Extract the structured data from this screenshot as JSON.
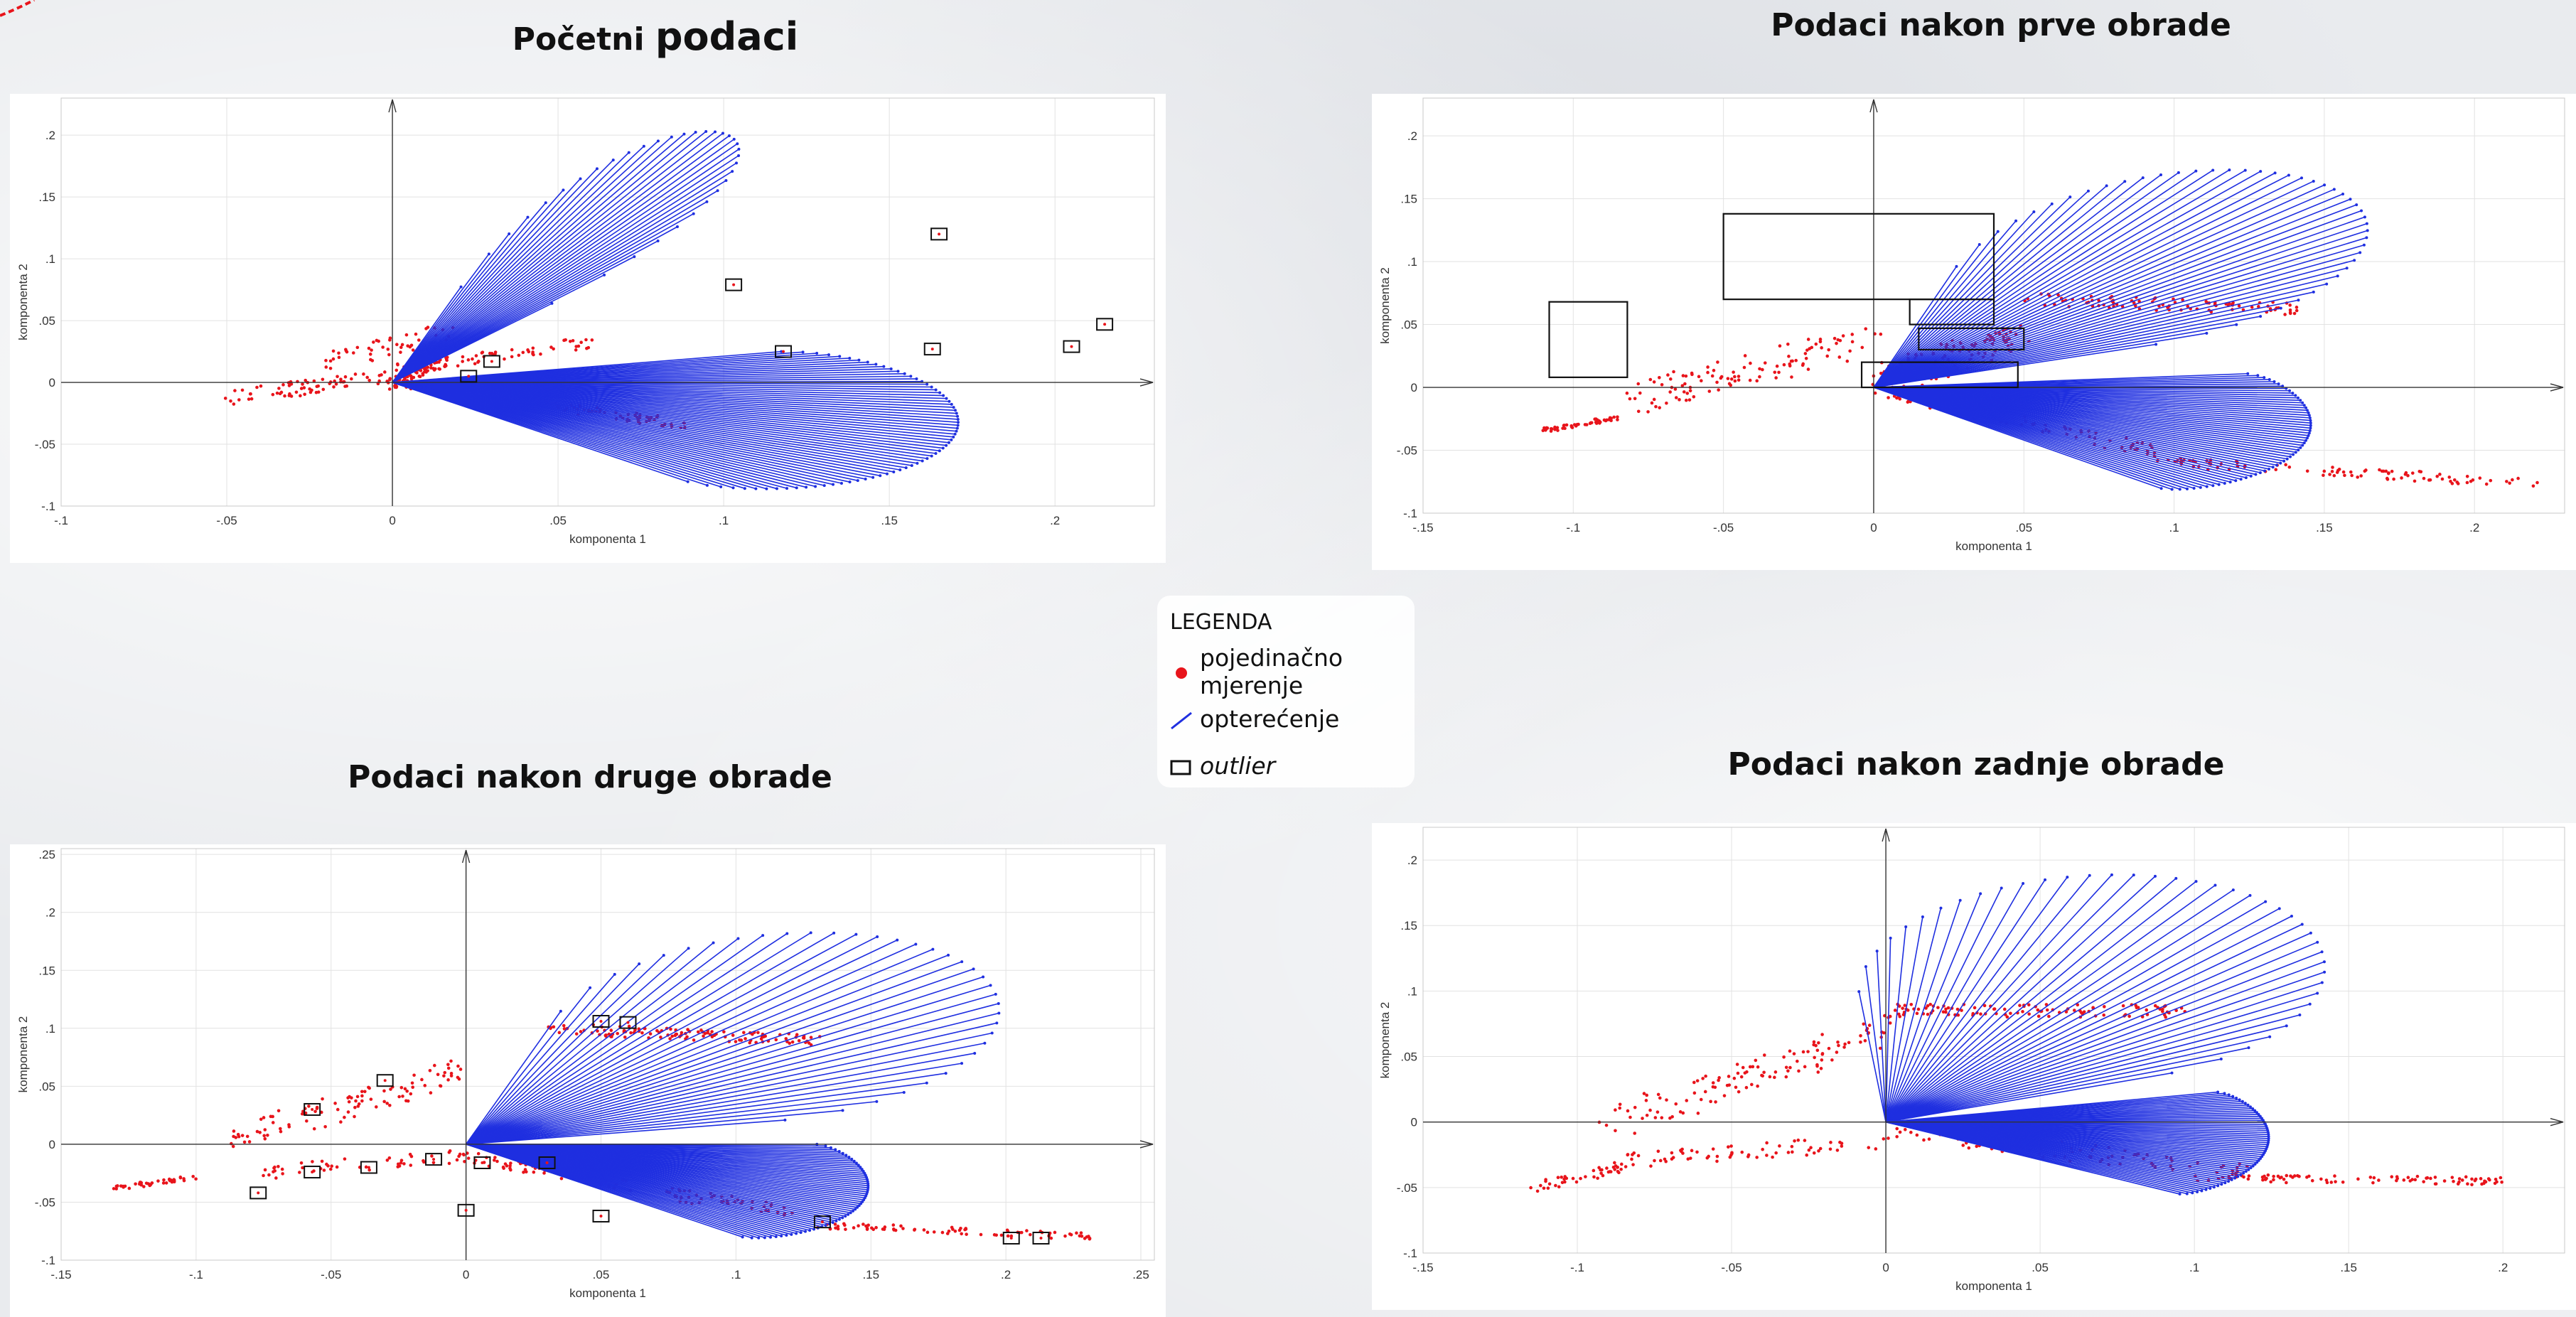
{
  "titles": {
    "p1_a": "Početni",
    "p1_b": "podaci",
    "p2": "Podaci nakon prve obrade",
    "p3": "Podaci nakon druge obrade",
    "p4": "Podaci nakon zadnje obrade"
  },
  "legend": {
    "title": "LEGENDA",
    "measurement": "pojedinačno mjerenje",
    "loading": "opterećenje",
    "outlier": "outlier",
    "colors": {
      "measurement": "#e8141b",
      "loading": "#1f2fe0",
      "outlier": "#111111"
    }
  },
  "chart_data": [
    {
      "type": "scatter",
      "title": "Početni podaci",
      "xlabel": "komponenta 1",
      "ylabel": "komponenta 2",
      "xlim": [
        -0.1,
        0.23
      ],
      "ylim": [
        -0.1,
        0.23
      ],
      "xticks": [
        -0.1,
        -0.05,
        0,
        0.05,
        0.1,
        0.15,
        0.2
      ],
      "yticks": [
        -0.1,
        -0.05,
        0,
        0.05,
        0.1,
        0.15,
        0.2
      ],
      "grid": true,
      "loadings_upper": {
        "from_angle_deg": 53,
        "to_angle_deg": 75,
        "count": 34,
        "min_r": 0.08,
        "max_r": 0.225
      },
      "loadings_lower": {
        "from_angle_deg": -42,
        "to_angle_deg": 12,
        "count": 70,
        "min_r": 0.12,
        "max_r": 0.175
      },
      "cloud_segments": [
        {
          "x0": -0.05,
          "y0": -0.012,
          "x1": 0.0,
          "y1": 0.005,
          "n": 70,
          "spread": 0.006
        },
        {
          "x0": -0.025,
          "y0": 0.012,
          "x1": 0.02,
          "y1": 0.045,
          "n": 45,
          "spread": 0.008
        },
        {
          "x0": 0.0,
          "y0": 0.0,
          "x1": 0.09,
          "y1": -0.035,
          "n": 120,
          "spread": 0.004
        },
        {
          "x0": 0.002,
          "y0": 0.01,
          "x1": 0.06,
          "y1": 0.033,
          "n": 60,
          "spread": 0.005
        },
        {
          "x0": 0.0,
          "y0": 0.0,
          "x1": 0.015,
          "y1": 0.02,
          "n": 90,
          "spread": 0.006
        }
      ],
      "outliers": [
        {
          "x": 0.103,
          "y": 0.079
        },
        {
          "x": 0.165,
          "y": 0.12
        },
        {
          "x": 0.118,
          "y": 0.025
        },
        {
          "x": 0.163,
          "y": 0.027
        },
        {
          "x": 0.205,
          "y": 0.029
        },
        {
          "x": 0.215,
          "y": 0.047
        },
        {
          "x": 0.03,
          "y": 0.017
        },
        {
          "x": 0.023,
          "y": 0.005
        }
      ],
      "outlier_boxes": []
    },
    {
      "type": "scatter",
      "title": "Podaci nakon prve obrade",
      "xlabel": "komponenta 1",
      "ylabel": "komponenta 2",
      "xlim": [
        -0.15,
        0.23
      ],
      "ylim": [
        -0.1,
        0.23
      ],
      "xticks": [
        -0.15,
        -0.1,
        -0.05,
        0,
        0.05,
        0.1,
        0.15,
        0.2
      ],
      "yticks": [
        -0.1,
        -0.05,
        0,
        0.05,
        0.1,
        0.15,
        0.2
      ],
      "grid": true,
      "loadings_upper": {
        "from_angle_deg": 20,
        "to_angle_deg": 74,
        "count": 45,
        "min_r": 0.1,
        "max_r": 0.22
      },
      "loadings_lower": {
        "from_angle_deg": -40,
        "to_angle_deg": 5,
        "count": 60,
        "min_r": 0.125,
        "max_r": 0.15
      },
      "cloud_segments": [
        {
          "x0": -0.11,
          "y0": -0.034,
          "x1": -0.085,
          "y1": -0.024,
          "n": 50,
          "spread": 0.002
        },
        {
          "x0": -0.08,
          "y0": -0.01,
          "x1": 0.0,
          "y1": 0.04,
          "n": 110,
          "spread": 0.012
        },
        {
          "x0": 0.0,
          "y0": 0.0,
          "x1": 0.1,
          "y1": -0.055,
          "n": 90,
          "spread": 0.006
        },
        {
          "x0": 0.1,
          "y0": -0.06,
          "x1": 0.22,
          "y1": -0.076,
          "n": 90,
          "spread": 0.004
        },
        {
          "x0": 0.05,
          "y0": 0.07,
          "x1": 0.14,
          "y1": 0.062,
          "n": 90,
          "spread": 0.005
        },
        {
          "x0": 0.0,
          "y0": 0.005,
          "x1": 0.05,
          "y1": 0.04,
          "n": 120,
          "spread": 0.012
        }
      ],
      "outliers": [],
      "outlier_boxes": [
        {
          "x0": -0.108,
          "y0": 0.008,
          "x1": -0.082,
          "y1": 0.068
        },
        {
          "x0": -0.05,
          "y0": 0.07,
          "x1": 0.04,
          "y1": 0.138
        },
        {
          "x0": 0.015,
          "y0": 0.03,
          "x1": 0.05,
          "y1": 0.047
        },
        {
          "x0": -0.004,
          "y0": 0.0,
          "x1": 0.048,
          "y1": 0.02
        },
        {
          "x0": 0.012,
          "y0": 0.05,
          "x1": 0.04,
          "y1": 0.07
        }
      ]
    },
    {
      "type": "scatter",
      "title": "Podaci nakon druge obrade",
      "xlabel": "komponenta 1",
      "ylabel": "komponenta 2",
      "xlim": [
        -0.15,
        0.255
      ],
      "ylim": [
        -0.1,
        0.255
      ],
      "xticks": [
        -0.15,
        -0.1,
        -0.05,
        0,
        0.05,
        0.1,
        0.15,
        0.2,
        0.25
      ],
      "yticks": [
        -0.1,
        -0.05,
        0,
        0.05,
        0.1,
        0.15,
        0.2,
        0.25
      ],
      "grid": true,
      "loadings_upper": {
        "from_angle_deg": 10,
        "to_angle_deg": 73,
        "count": 36,
        "min_r": 0.12,
        "max_r": 0.242
      },
      "loadings_lower": {
        "from_angle_deg": -38,
        "to_angle_deg": 0,
        "count": 60,
        "min_r": 0.13,
        "max_r": 0.155
      },
      "cloud_segments": [
        {
          "x0": -0.13,
          "y0": -0.038,
          "x1": -0.1,
          "y1": -0.028,
          "n": 40,
          "spread": 0.002
        },
        {
          "x0": -0.09,
          "y0": 0.0,
          "x1": 0.0,
          "y1": 0.065,
          "n": 100,
          "spread": 0.012
        },
        {
          "x0": 0.03,
          "y0": 0.1,
          "x1": 0.13,
          "y1": 0.09,
          "n": 120,
          "spread": 0.005
        },
        {
          "x0": -0.08,
          "y0": -0.025,
          "x1": 0.0,
          "y1": -0.01,
          "n": 50,
          "spread": 0.006
        },
        {
          "x0": 0.0,
          "y0": -0.01,
          "x1": 0.12,
          "y1": -0.06,
          "n": 110,
          "spread": 0.006
        },
        {
          "x0": 0.13,
          "y0": -0.07,
          "x1": 0.235,
          "y1": -0.08,
          "n": 80,
          "spread": 0.003
        }
      ],
      "outliers": [
        {
          "x": -0.057,
          "y": 0.03
        },
        {
          "x": -0.03,
          "y": 0.055
        },
        {
          "x": 0.05,
          "y": 0.106
        },
        {
          "x": 0.06,
          "y": 0.105
        },
        {
          "x": -0.077,
          "y": -0.042
        },
        {
          "x": -0.057,
          "y": -0.024
        },
        {
          "x": -0.036,
          "y": -0.02
        },
        {
          "x": -0.012,
          "y": -0.013
        },
        {
          "x": 0.006,
          "y": -0.016
        },
        {
          "x": 0.03,
          "y": -0.016
        },
        {
          "x": 0.0,
          "y": -0.057
        },
        {
          "x": 0.05,
          "y": -0.062
        },
        {
          "x": 0.132,
          "y": -0.067
        },
        {
          "x": 0.202,
          "y": -0.081
        },
        {
          "x": 0.213,
          "y": -0.081
        }
      ],
      "outlier_boxes": []
    },
    {
      "type": "scatter",
      "title": "Podaci nakon zadnje obrade",
      "xlabel": "komponenta 1",
      "ylabel": "komponenta 2",
      "xlim": [
        -0.15,
        0.22
      ],
      "ylim": [
        -0.1,
        0.225
      ],
      "xticks": [
        -0.15,
        -0.1,
        -0.05,
        0,
        0.05,
        0.1,
        0.15,
        0.2
      ],
      "yticks": [
        -0.1,
        -0.05,
        0,
        0.05,
        0.1,
        0.15,
        0.2
      ],
      "grid": true,
      "loadings_upper": {
        "from_angle_deg": 22,
        "to_angle_deg": 95,
        "count": 40,
        "min_r": 0.1,
        "max_r": 0.21
      },
      "loadings_lower": {
        "from_angle_deg": -30,
        "to_angle_deg": 12,
        "count": 60,
        "min_r": 0.11,
        "max_r": 0.125
      },
      "cloud_segments": [
        {
          "x0": -0.115,
          "y0": -0.05,
          "x1": -0.085,
          "y1": -0.035,
          "n": 40,
          "spread": 0.004
        },
        {
          "x0": -0.09,
          "y0": 0.0,
          "x1": 0.0,
          "y1": 0.07,
          "n": 120,
          "spread": 0.013
        },
        {
          "x0": 0.0,
          "y0": 0.085,
          "x1": 0.1,
          "y1": 0.085,
          "n": 110,
          "spread": 0.005
        },
        {
          "x0": -0.09,
          "y0": -0.03,
          "x1": 0.0,
          "y1": -0.015,
          "n": 70,
          "spread": 0.006
        },
        {
          "x0": 0.0,
          "y0": -0.005,
          "x1": 0.12,
          "y1": -0.04,
          "n": 90,
          "spread": 0.007
        },
        {
          "x0": 0.1,
          "y0": -0.043,
          "x1": 0.2,
          "y1": -0.045,
          "n": 90,
          "spread": 0.003
        }
      ],
      "outliers": [],
      "outlier_boxes": []
    }
  ]
}
